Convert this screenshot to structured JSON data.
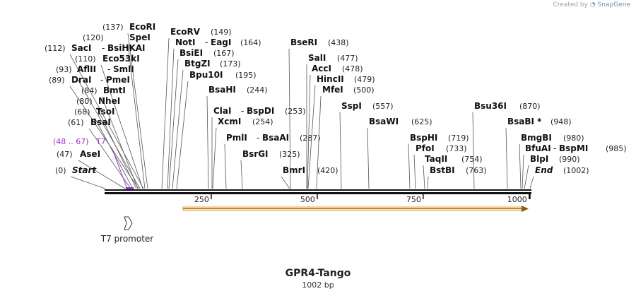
{
  "credit": {
    "prefix": "Created by",
    "brand": "SnapGene"
  },
  "title": "GPR4-Tango",
  "subtitle": "1002 bp",
  "ruler": {
    "length": 1002,
    "ticks": [
      250,
      500,
      750,
      1000
    ]
  },
  "feature": {
    "name": "T7 promoter",
    "range": "(48 .. 67)",
    "short": "T7",
    "color": "#9933cc"
  },
  "orf": {
    "start": 180,
    "end": 1002,
    "color": "#e8a33c"
  },
  "sites": [
    {
      "name": "EcoRI",
      "pos": "(137)"
    },
    {
      "name": "SpeI",
      "pos": "(120)"
    },
    {
      "name": "SacI",
      "alt": "BsiHKAI",
      "pos": "(112)"
    },
    {
      "name": "Eco53kI",
      "pos": "(110)"
    },
    {
      "name": "AflII",
      "alt": "SmlI",
      "pos": "(93)"
    },
    {
      "name": "DraI",
      "alt": "PmeI",
      "pos": "(89)"
    },
    {
      "name": "BmtI",
      "pos": "(84)"
    },
    {
      "name": "NheI",
      "pos": "(80)"
    },
    {
      "name": "TsoI",
      "pos": "(68)"
    },
    {
      "name": "BsaI",
      "pos": "(61)"
    },
    {
      "name": "AseI",
      "pos": "(47)"
    },
    {
      "name": "Start",
      "pos": "(0)"
    },
    {
      "name": "EcoRV",
      "pos": "(149)"
    },
    {
      "name": "NotI",
      "alt": "EagI",
      "pos": "(164)"
    },
    {
      "name": "BsiEI",
      "pos": "(167)"
    },
    {
      "name": "BtgZI",
      "pos": "(173)"
    },
    {
      "name": "Bpu10I",
      "pos": "(195)"
    },
    {
      "name": "BsaHI",
      "pos": "(244)"
    },
    {
      "name": "ClaI",
      "alt": "BspDI",
      "pos": "(253)"
    },
    {
      "name": "XcmI",
      "pos": "(254)"
    },
    {
      "name": "PmlI",
      "alt": "BsaAI",
      "pos": "(287)"
    },
    {
      "name": "BsrGI",
      "pos": "(325)"
    },
    {
      "name": "BmrI",
      "pos": "(420)"
    },
    {
      "name": "BseRI",
      "pos": "(438)"
    },
    {
      "name": "SalI",
      "pos": "(477)"
    },
    {
      "name": "AccI",
      "pos": "(478)"
    },
    {
      "name": "HincII",
      "pos": "(479)"
    },
    {
      "name": "MfeI",
      "pos": "(500)"
    },
    {
      "name": "SspI",
      "pos": "(557)"
    },
    {
      "name": "BsaWI",
      "pos": "(625)"
    },
    {
      "name": "BspHI",
      "pos": "(719)"
    },
    {
      "name": "PfoI",
      "pos": "(733)"
    },
    {
      "name": "TaqII",
      "pos": "(754)"
    },
    {
      "name": "BstBI",
      "pos": "(763)"
    },
    {
      "name": "Bsu36I",
      "pos": "(870)"
    },
    {
      "name": "BsaBI *",
      "pos": "(948)"
    },
    {
      "name": "BmgBI",
      "pos": "(980)"
    },
    {
      "name": "BfuAI",
      "alt": "BspMI",
      "pos": "(985)"
    },
    {
      "name": "BlpI",
      "pos": "(990)"
    },
    {
      "name": "End",
      "pos": "(1002)"
    }
  ]
}
